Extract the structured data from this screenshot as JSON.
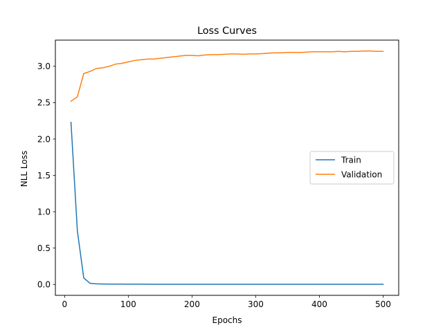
{
  "chart_data": {
    "type": "line",
    "title": "Loss Curves",
    "xlabel": "Epochs",
    "ylabel": "NLL Loss",
    "xlim": [
      -14.5,
      524.5
    ],
    "ylim": [
      -0.15,
      3.36
    ],
    "xticks": [
      0,
      100,
      200,
      300,
      400,
      500
    ],
    "xtick_labels": [
      "0",
      "100",
      "200",
      "300",
      "400",
      "500"
    ],
    "yticks": [
      0.0,
      0.5,
      1.0,
      1.5,
      2.0,
      2.5,
      3.0
    ],
    "ytick_labels": [
      "0.0",
      "0.5",
      "1.0",
      "1.5",
      "2.0",
      "2.5",
      "3.0"
    ],
    "grid": false,
    "legend_position": "center-right",
    "x": [
      10,
      20,
      30,
      40,
      50,
      60,
      70,
      80,
      90,
      100,
      110,
      120,
      130,
      140,
      150,
      160,
      170,
      180,
      190,
      200,
      210,
      220,
      230,
      240,
      250,
      260,
      270,
      280,
      290,
      300,
      310,
      320,
      330,
      340,
      350,
      360,
      370,
      380,
      390,
      400,
      410,
      420,
      430,
      440,
      450,
      460,
      470,
      480,
      490,
      500
    ],
    "series": [
      {
        "name": "Train",
        "color": "#1f77b4",
        "values": [
          2.23,
          0.74,
          0.09,
          0.015,
          0.008,
          0.006,
          0.005,
          0.004,
          0.004,
          0.003,
          0.003,
          0.003,
          0.003,
          0.002,
          0.002,
          0.002,
          0.002,
          0.002,
          0.002,
          0.002,
          0.002,
          0.002,
          0.002,
          0.002,
          0.002,
          0.002,
          0.002,
          0.002,
          0.002,
          0.002,
          0.002,
          0.002,
          0.002,
          0.002,
          0.002,
          0.002,
          0.002,
          0.002,
          0.002,
          0.002,
          0.002,
          0.002,
          0.002,
          0.002,
          0.002,
          0.002,
          0.002,
          0.002,
          0.002,
          0.002
        ]
      },
      {
        "name": "Validation",
        "color": "#ff7f0e",
        "values": [
          2.52,
          2.58,
          2.9,
          2.93,
          2.97,
          2.98,
          3.0,
          3.03,
          3.04,
          3.06,
          3.08,
          3.09,
          3.1,
          3.1,
          3.11,
          3.12,
          3.13,
          3.14,
          3.15,
          3.15,
          3.145,
          3.155,
          3.16,
          3.16,
          3.165,
          3.17,
          3.17,
          3.165,
          3.17,
          3.17,
          3.175,
          3.18,
          3.185,
          3.185,
          3.19,
          3.19,
          3.19,
          3.195,
          3.2,
          3.2,
          3.2,
          3.2,
          3.205,
          3.2,
          3.205,
          3.205,
          3.21,
          3.21,
          3.205,
          3.205
        ]
      }
    ]
  }
}
